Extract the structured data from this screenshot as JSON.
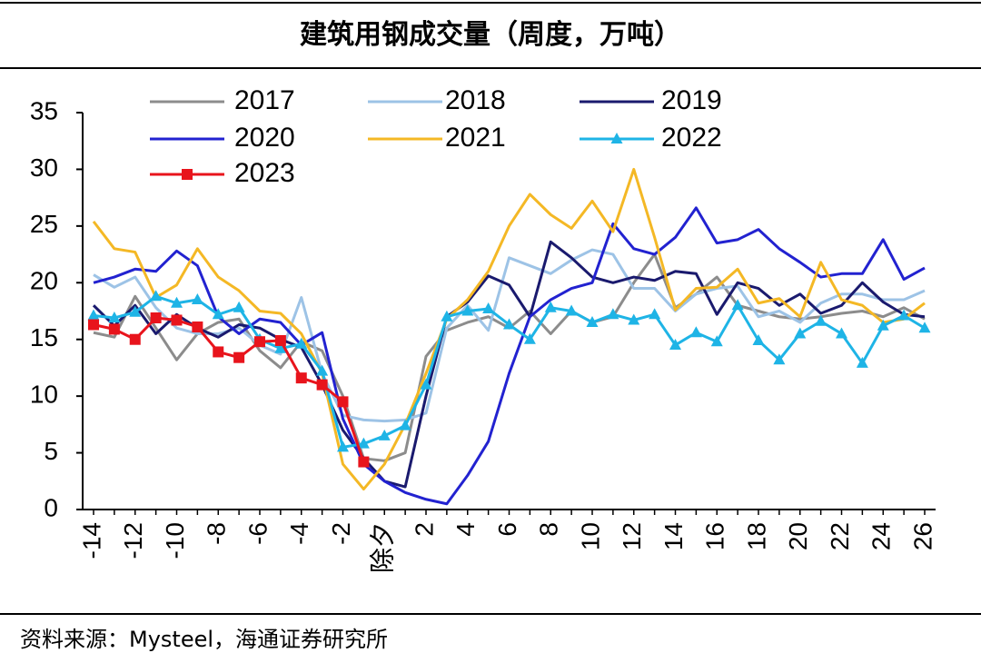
{
  "chart_data": {
    "type": "line",
    "title": "建筑用钢成交量（周度，万吨）",
    "source": "资料来源：Mysteel，海通证券研究所",
    "categories": [
      "-14",
      null,
      "-12",
      null,
      "-10",
      null,
      "-8",
      null,
      "-6",
      null,
      "-4",
      null,
      "-2",
      null,
      "除夕",
      null,
      "2",
      null,
      "4",
      null,
      "6",
      null,
      "8",
      null,
      "10",
      null,
      "12",
      null,
      "14",
      null,
      "16",
      null,
      "18",
      null,
      "20",
      null,
      "22",
      null,
      "24",
      null,
      "26"
    ],
    "ylim": [
      0,
      35
    ],
    "yticks": [
      0,
      5,
      10,
      15,
      20,
      25,
      30,
      35
    ],
    "series": [
      {
        "name": "2017",
        "color": "#8c8c8c",
        "values": [
          15.6,
          15.2,
          18.8,
          16.0,
          13.2,
          15.5,
          16.5,
          16.8,
          14.0,
          12.5,
          14.8,
          14.0,
          10.0,
          4.5,
          4.3,
          5.0,
          13.5,
          15.8,
          16.5,
          17.0,
          16.0,
          17.5,
          15.5,
          17.5,
          16.5,
          17.0,
          20.0,
          22.5,
          17.8,
          19.0,
          20.5,
          18.0,
          17.5,
          17.0,
          16.8,
          17.0,
          17.3,
          17.5,
          17.0,
          17.8,
          16.8
        ]
      },
      {
        "name": "2018",
        "color": "#9dc3e6",
        "values": [
          20.7,
          19.6,
          20.5,
          17.8,
          16.0,
          15.5,
          15.5,
          16.0,
          14.5,
          13.7,
          18.7,
          12.0,
          8.3,
          7.9,
          7.8,
          7.9,
          8.5,
          16.0,
          18.0,
          15.8,
          22.2,
          21.5,
          20.8,
          22.0,
          22.9,
          22.5,
          19.5,
          19.5,
          17.5,
          19.0,
          19.5,
          19.7,
          17.0,
          17.5,
          16.5,
          18.2,
          19.0,
          19.0,
          18.5,
          18.5,
          19.3
        ]
      },
      {
        "name": "2019",
        "color": "#1a1a6e",
        "values": [
          18.0,
          16.2,
          18.0,
          15.5,
          17.2,
          16.0,
          15.2,
          16.3,
          16.0,
          15.0,
          14.3,
          11.0,
          7.0,
          4.5,
          2.5,
          2.0,
          10.0,
          17.0,
          18.3,
          20.6,
          19.8,
          17.0,
          23.6,
          22.2,
          20.5,
          20.0,
          20.5,
          20.2,
          21.0,
          20.8,
          17.2,
          20.0,
          19.5,
          18.0,
          19.0,
          17.3,
          18.0,
          20.0,
          18.3,
          17.2,
          17.0
        ]
      },
      {
        "name": "2020",
        "color": "#2222d0",
        "values": [
          20.0,
          20.5,
          21.2,
          21.0,
          22.8,
          21.5,
          17.0,
          15.5,
          16.8,
          16.5,
          14.5,
          15.6,
          8.0,
          4.0,
          2.5,
          1.5,
          0.9,
          0.5,
          3.0,
          6.0,
          12.0,
          17.0,
          18.5,
          19.5,
          20.0,
          25.2,
          23.0,
          22.5,
          24.0,
          26.6,
          23.5,
          23.8,
          24.7,
          23.0,
          21.8,
          20.5,
          20.8,
          20.8,
          23.8,
          20.3,
          21.3
        ]
      },
      {
        "name": "2021",
        "color": "#f4b825",
        "values": [
          25.4,
          23.0,
          22.7,
          18.7,
          19.8,
          23.0,
          20.5,
          19.3,
          17.5,
          17.3,
          15.5,
          12.0,
          4.0,
          1.8,
          4.0,
          7.5,
          12.0,
          16.8,
          18.5,
          21.0,
          25.0,
          27.8,
          26.0,
          24.8,
          27.2,
          24.5,
          30.0,
          24.0,
          17.6,
          19.5,
          19.6,
          21.2,
          18.2,
          18.6,
          17.0,
          21.8,
          18.5,
          18.0,
          16.5,
          16.8,
          18.2
        ]
      },
      {
        "name": "2022",
        "color": "#1eb4e6",
        "marker": "triangle",
        "values": [
          17.1,
          16.9,
          17.4,
          18.8,
          18.2,
          18.5,
          17.2,
          17.8,
          15.0,
          14.2,
          14.6,
          12.2,
          5.5,
          5.8,
          6.5,
          7.4,
          11.0,
          17.0,
          17.5,
          17.7,
          16.3,
          15.0,
          17.8,
          17.5,
          16.5,
          17.2,
          16.7,
          17.2,
          14.5,
          15.6,
          14.8,
          18.0,
          14.9,
          13.2,
          15.5,
          16.6,
          15.5,
          12.9,
          16.2,
          17.1,
          16.0
        ]
      },
      {
        "name": "2023",
        "color": "#e8141c",
        "marker": "square",
        "values": [
          16.3,
          15.9,
          15.0,
          16.9,
          16.7,
          16.1,
          13.9,
          13.4,
          14.8,
          14.9,
          11.6,
          11.0,
          9.5,
          4.2,
          null,
          null,
          null,
          null,
          null,
          null,
          null,
          null,
          null,
          null,
          null,
          null,
          null,
          null,
          null,
          null,
          null,
          null,
          null,
          null,
          null,
          null,
          null,
          null,
          null,
          null,
          null
        ]
      }
    ]
  }
}
